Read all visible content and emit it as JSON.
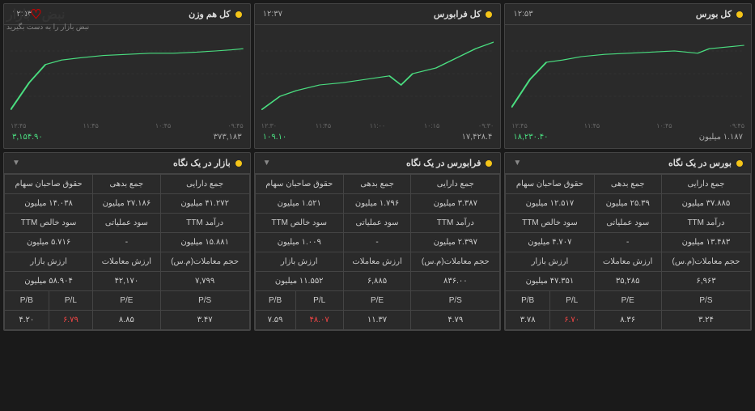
{
  "charts": [
    {
      "title": "کل بورس",
      "time": "۱۲:۵۳",
      "footer_val1": "۱۸,۲۳۰.۴۰",
      "footer_val2": "۱.۱۸۷ میلیون",
      "line_color": "#4ade80",
      "bg": "#2a2a2a",
      "grid_color": "#3a3a3a",
      "xticks": [
        "۰۹:۴۵",
        "۱۰:۴۵",
        "۱۱:۴۵",
        "۱۲:۴۵"
      ],
      "points": [
        [
          0,
          70
        ],
        [
          8,
          45
        ],
        [
          15,
          30
        ],
        [
          22,
          28
        ],
        [
          30,
          25
        ],
        [
          40,
          23
        ],
        [
          50,
          22
        ],
        [
          60,
          21
        ],
        [
          70,
          20
        ],
        [
          80,
          22
        ],
        [
          85,
          18
        ],
        [
          90,
          17
        ],
        [
          95,
          16
        ],
        [
          100,
          15
        ]
      ]
    },
    {
      "title": "کل فرابورس",
      "time": "۱۲:۳۷",
      "footer_val1": "۱۰۹.۱۰",
      "footer_val2": "۱۷,۴۲۸.۴",
      "line_color": "#4ade80",
      "bg": "#2a2a2a",
      "grid_color": "#3a3a3a",
      "xticks": [
        "۰۹:۳۰",
        "۱۰:۱۵",
        "۱۱:۰۰",
        "۱۱:۴۵",
        "۱۲:۳۰"
      ],
      "points": [
        [
          0,
          72
        ],
        [
          8,
          60
        ],
        [
          15,
          55
        ],
        [
          25,
          50
        ],
        [
          35,
          48
        ],
        [
          45,
          45
        ],
        [
          55,
          42
        ],
        [
          60,
          50
        ],
        [
          65,
          40
        ],
        [
          75,
          35
        ],
        [
          85,
          25
        ],
        [
          92,
          18
        ],
        [
          100,
          12
        ]
      ]
    },
    {
      "title": "کل هم وزن",
      "time": "۱۲:۵۳",
      "footer_val1": "۳,۱۵۴.۹۰",
      "footer_val2": "۳۷۳,۱۸۳",
      "line_color": "#4ade80",
      "bg": "#2a2a2a",
      "grid_color": "#3a3a3a",
      "xticks": [
        "۰۹:۴۵",
        "۱۰:۴۵",
        "۱۱:۴۵",
        "۱۲:۴۵"
      ],
      "points": [
        [
          0,
          72
        ],
        [
          8,
          48
        ],
        [
          15,
          32
        ],
        [
          22,
          28
        ],
        [
          30,
          26
        ],
        [
          40,
          24
        ],
        [
          50,
          23
        ],
        [
          60,
          22
        ],
        [
          70,
          22
        ],
        [
          80,
          21
        ],
        [
          88,
          20
        ],
        [
          95,
          19
        ],
        [
          100,
          18
        ]
      ]
    }
  ],
  "tables": [
    {
      "title": "بورس در یک نگاه",
      "rows": [
        [
          {
            "t": "جمع دارایی"
          },
          {
            "t": "جمع بدهی"
          },
          {
            "t": "حقوق صاحبان سهام",
            "cs": 2
          }
        ],
        [
          {
            "t": "۳۷.۸۸۵ میلیون"
          },
          {
            "t": "۲۵.۳۹ میلیون"
          },
          {
            "t": "۱۲.۵۱۷ میلیون",
            "cs": 2
          }
        ],
        [
          {
            "t": "درآمد TTM"
          },
          {
            "t": "سود عملیاتی"
          },
          {
            "t": "سود خالص TTM",
            "cs": 2
          }
        ],
        [
          {
            "t": "۱۳.۴۸۳ میلیون"
          },
          {
            "t": "-"
          },
          {
            "t": "۴.۷۰۷ میلیون",
            "cs": 2
          }
        ],
        [
          {
            "t": "حجم معاملات(م.س)"
          },
          {
            "t": "ارزش معاملات"
          },
          {
            "t": "ارزش بازار",
            "cs": 2
          }
        ],
        [
          {
            "t": "۶,۹۶۳"
          },
          {
            "t": "۳۵,۲۸۵"
          },
          {
            "t": "۴۷.۳۵۱ میلیون",
            "cs": 2
          }
        ],
        [
          {
            "t": "P/S"
          },
          {
            "t": "P/E"
          },
          {
            "t": "P/L"
          },
          {
            "t": "P/B"
          }
        ],
        [
          {
            "t": "۳.۲۴"
          },
          {
            "t": "۸.۳۶"
          },
          {
            "t": "۶.۷۰",
            "c": "red-txt"
          },
          {
            "t": "۳.۷۸"
          }
        ]
      ]
    },
    {
      "title": "فرابورس در یک نگاه",
      "rows": [
        [
          {
            "t": "جمع دارایی"
          },
          {
            "t": "جمع بدهی"
          },
          {
            "t": "حقوق صاحبان سهام",
            "cs": 2
          }
        ],
        [
          {
            "t": "۳.۳۸۷ میلیون"
          },
          {
            "t": "۱.۷۹۶ میلیون"
          },
          {
            "t": "۱.۵۲۱ میلیون",
            "cs": 2
          }
        ],
        [
          {
            "t": "درآمد TTM"
          },
          {
            "t": "سود عملیاتی"
          },
          {
            "t": "سود خالص TTM",
            "cs": 2
          }
        ],
        [
          {
            "t": "۲.۳۹۷ میلیون"
          },
          {
            "t": "-"
          },
          {
            "t": "۱.۰۰۹ میلیون",
            "cs": 2
          }
        ],
        [
          {
            "t": "حجم معاملات(م.س)"
          },
          {
            "t": "ارزش معاملات"
          },
          {
            "t": "ارزش بازار",
            "cs": 2
          }
        ],
        [
          {
            "t": "۸۳۶.۰۰"
          },
          {
            "t": "۶,۸۸۵"
          },
          {
            "t": "۱۱.۵۵۲ میلیون",
            "cs": 2
          }
        ],
        [
          {
            "t": "P/S"
          },
          {
            "t": "P/E"
          },
          {
            "t": "P/L"
          },
          {
            "t": "P/B"
          }
        ],
        [
          {
            "t": "۴.۷۹"
          },
          {
            "t": "۱۱.۳۷"
          },
          {
            "t": "۴۸.۰۷",
            "c": "red-txt"
          },
          {
            "t": "۷.۵۹"
          }
        ]
      ]
    },
    {
      "title": "بازار در یک نگاه",
      "rows": [
        [
          {
            "t": "جمع دارایی"
          },
          {
            "t": "جمع بدهی"
          },
          {
            "t": "حقوق صاحبان سهام",
            "cs": 2
          }
        ],
        [
          {
            "t": "۴۱.۲۷۲ میلیون"
          },
          {
            "t": "۲۷.۱۸۶ میلیون"
          },
          {
            "t": "۱۴.۰۳۸ میلیون",
            "cs": 2
          }
        ],
        [
          {
            "t": "درآمد TTM"
          },
          {
            "t": "سود عملیاتی"
          },
          {
            "t": "سود خالص TTM",
            "cs": 2
          }
        ],
        [
          {
            "t": "۱۵.۸۸۱ میلیون"
          },
          {
            "t": "-"
          },
          {
            "t": "۵.۷۱۶ میلیون",
            "cs": 2
          }
        ],
        [
          {
            "t": "حجم معاملات(م.س)"
          },
          {
            "t": "ارزش معاملات"
          },
          {
            "t": "ارزش بازار",
            "cs": 2
          }
        ],
        [
          {
            "t": "۷,۷۹۹"
          },
          {
            "t": "۴۲,۱۷۰"
          },
          {
            "t": "۵۸.۹۰۴ میلیون",
            "cs": 2
          }
        ],
        [
          {
            "t": "P/S"
          },
          {
            "t": "P/E"
          },
          {
            "t": "P/L"
          },
          {
            "t": "P/B"
          }
        ],
        [
          {
            "t": "۳.۴۷"
          },
          {
            "t": "۸.۸۵"
          },
          {
            "t": "۶.۷۹",
            "c": "red-txt"
          },
          {
            "t": "۴.۲۰"
          }
        ]
      ]
    }
  ],
  "logo": {
    "brand_part1": "نبض",
    "brand_part2": "بازار",
    "tagline": "نبض بازار را به دست بگیرید"
  }
}
